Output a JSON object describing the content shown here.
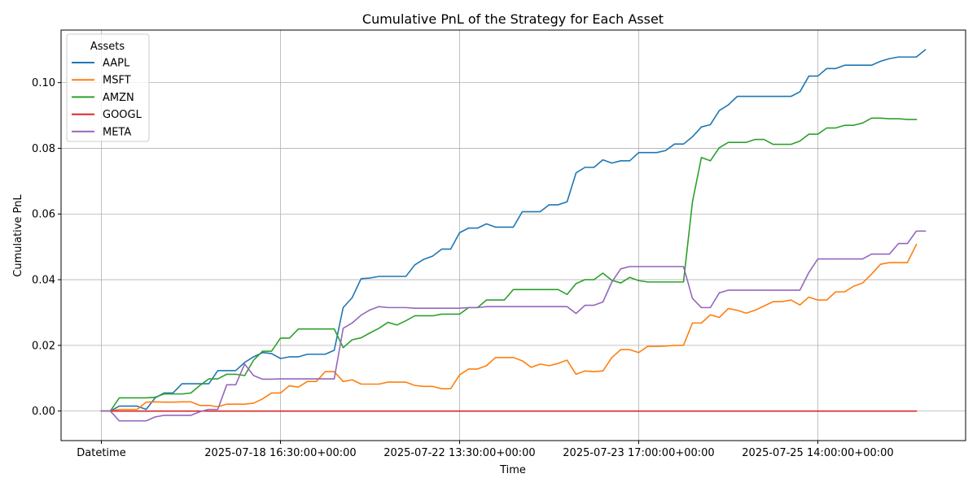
{
  "chart_data": {
    "type": "line",
    "title": "Cumulative PnL of the Strategy for Each Asset",
    "xlabel": "Time",
    "ylabel": "Cumulative PnL",
    "x_tick_labels": [
      "Datetime",
      "2025-07-18 16:30:00+00:00",
      "2025-07-22 13:30:00+00:00",
      "2025-07-23 17:00:00+00:00",
      "2025-07-25 14:00:00+00:00"
    ],
    "x_ticks_at_index": [
      0,
      20,
      40,
      60,
      80
    ],
    "xlim": [
      -4.5,
      96.5
    ],
    "ylim": [
      -0.009,
      0.116
    ],
    "y_ticks": [
      0.0,
      0.02,
      0.04,
      0.06,
      0.08,
      0.1
    ],
    "y_tick_labels": [
      "0.00",
      "0.02",
      "0.04",
      "0.06",
      "0.08",
      "0.10"
    ],
    "grid": true,
    "legend": {
      "title": "Assets",
      "placement": "top-left"
    },
    "series": [
      {
        "name": "AAPL",
        "color": "#1f77b4",
        "values": [
          0,
          0,
          0.0015,
          0.0015,
          0.0015,
          0.0005,
          0.004,
          0.0055,
          0.0055,
          0.0083,
          0.0083,
          0.0083,
          0.0083,
          0.0123,
          0.0123,
          0.0123,
          0.0148,
          0.0165,
          0.0178,
          0.0175,
          0.016,
          0.0165,
          0.0165,
          0.0173,
          0.0173,
          0.0173,
          0.0185,
          0.0315,
          0.0345,
          0.0403,
          0.0405,
          0.041,
          0.041,
          0.041,
          0.041,
          0.0445,
          0.0462,
          0.0472,
          0.0493,
          0.0493,
          0.0543,
          0.0557,
          0.0557,
          0.057,
          0.056,
          0.056,
          0.056,
          0.0607,
          0.0607,
          0.0607,
          0.0628,
          0.0628,
          0.0637,
          0.0725,
          0.0742,
          0.0742,
          0.0765,
          0.0755,
          0.0762,
          0.0762,
          0.0787,
          0.0787,
          0.0787,
          0.0793,
          0.0813,
          0.0813,
          0.0835,
          0.0865,
          0.0872,
          0.0915,
          0.0932,
          0.0958,
          0.0958,
          0.0958,
          0.0958,
          0.0958,
          0.0958,
          0.0958,
          0.0972,
          0.102,
          0.102,
          0.1043,
          0.1043,
          0.1053,
          0.1053,
          0.1053,
          0.1053,
          0.1065,
          0.1073,
          0.1078,
          0.1078,
          0.1078,
          0.11
        ]
      },
      {
        "name": "MSFT",
        "color": "#ff7f0e",
        "values": [
          0,
          0,
          0.0005,
          0.0005,
          0.0005,
          0.0027,
          0.0028,
          0.0027,
          0.0027,
          0.0028,
          0.0028,
          0.0017,
          0.0017,
          0.0013,
          0.0021,
          0.0021,
          0.0021,
          0.0024,
          0.0037,
          0.0055,
          0.0055,
          0.0077,
          0.0073,
          0.009,
          0.009,
          0.012,
          0.012,
          0.009,
          0.0095,
          0.0082,
          0.0082,
          0.0082,
          0.0088,
          0.0088,
          0.0088,
          0.0078,
          0.0075,
          0.0075,
          0.0068,
          0.0068,
          0.011,
          0.0128,
          0.0128,
          0.0138,
          0.0163,
          0.0163,
          0.0163,
          0.0153,
          0.0133,
          0.0143,
          0.0138,
          0.0145,
          0.0155,
          0.0112,
          0.0122,
          0.012,
          0.0122,
          0.0163,
          0.0187,
          0.0187,
          0.0178,
          0.0197,
          0.0197,
          0.0198,
          0.02,
          0.02,
          0.0268,
          0.0268,
          0.0293,
          0.0285,
          0.0312,
          0.0307,
          0.0298,
          0.0307,
          0.032,
          0.0333,
          0.0333,
          0.0338,
          0.0323,
          0.0347,
          0.0338,
          0.0338,
          0.0363,
          0.0363,
          0.038,
          0.039,
          0.0417,
          0.0447,
          0.0452,
          0.0452,
          0.0452,
          0.0507
        ]
      },
      {
        "name": "AMZN",
        "color": "#2ca02c",
        "values": [
          0,
          0,
          0.004,
          0.004,
          0.004,
          0.004,
          0.0042,
          0.0052,
          0.0052,
          0.0052,
          0.0055,
          0.0078,
          0.0098,
          0.0098,
          0.0112,
          0.0112,
          0.0108,
          0.0155,
          0.0182,
          0.0182,
          0.0222,
          0.0222,
          0.025,
          0.025,
          0.025,
          0.025,
          0.025,
          0.0193,
          0.0217,
          0.0223,
          0.0238,
          0.0252,
          0.027,
          0.0262,
          0.0275,
          0.029,
          0.029,
          0.029,
          0.0295,
          0.0295,
          0.0295,
          0.0315,
          0.0315,
          0.0338,
          0.0338,
          0.0338,
          0.037,
          0.037,
          0.037,
          0.037,
          0.037,
          0.037,
          0.0355,
          0.0388,
          0.04,
          0.04,
          0.042,
          0.0398,
          0.039,
          0.0407,
          0.0397,
          0.0393,
          0.0393,
          0.0393,
          0.0393,
          0.0393,
          0.0637,
          0.0772,
          0.0762,
          0.0802,
          0.0818,
          0.0818,
          0.0818,
          0.0827,
          0.0827,
          0.0812,
          0.0812,
          0.0812,
          0.0822,
          0.0843,
          0.0843,
          0.0862,
          0.0862,
          0.087,
          0.087,
          0.0877,
          0.0892,
          0.0892,
          0.089,
          0.089,
          0.0888,
          0.0888
        ]
      },
      {
        "name": "GOOGL",
        "color": "#d62728",
        "values": [
          0,
          0,
          0,
          0,
          0,
          0,
          0,
          0,
          0,
          0,
          0,
          0,
          0,
          0,
          0,
          0,
          0,
          0,
          0,
          0,
          0,
          0,
          0,
          0,
          0,
          0,
          0,
          0,
          0,
          0,
          0,
          0,
          0,
          0,
          0,
          0,
          0,
          0,
          0,
          0,
          0,
          0,
          0,
          0,
          0,
          0,
          0,
          0,
          0,
          0,
          0,
          0,
          0,
          0,
          0,
          0,
          0,
          0,
          0,
          0,
          0,
          0,
          0,
          0,
          0,
          0,
          0,
          0,
          0,
          0,
          0,
          0,
          0,
          0,
          0,
          0,
          0,
          0,
          0,
          0,
          0,
          0,
          0,
          0,
          0,
          0,
          0,
          0,
          0,
          0,
          0,
          0
        ]
      },
      {
        "name": "META",
        "color": "#9467bd",
        "values": [
          0,
          0,
          -0.003,
          -0.003,
          -0.003,
          -0.003,
          -0.0018,
          -0.0013,
          -0.0013,
          -0.0013,
          -0.0013,
          -0.0002,
          0.0005,
          0.0005,
          0.008,
          0.008,
          0.0143,
          0.0108,
          0.0097,
          0.0097,
          0.0098,
          0.0098,
          0.0098,
          0.0098,
          0.0098,
          0.0098,
          0.0098,
          0.0252,
          0.0268,
          0.0292,
          0.0308,
          0.0318,
          0.0315,
          0.0315,
          0.0315,
          0.0313,
          0.0313,
          0.0313,
          0.0313,
          0.0313,
          0.0313,
          0.0315,
          0.0315,
          0.0318,
          0.0318,
          0.0318,
          0.0318,
          0.0318,
          0.0318,
          0.0318,
          0.0318,
          0.0318,
          0.0318,
          0.0297,
          0.0322,
          0.0322,
          0.0332,
          0.0393,
          0.0433,
          0.044,
          0.044,
          0.044,
          0.044,
          0.044,
          0.044,
          0.044,
          0.0343,
          0.0315,
          0.0315,
          0.036,
          0.0368,
          0.0368,
          0.0368,
          0.0368,
          0.0368,
          0.0368,
          0.0368,
          0.0368,
          0.0368,
          0.0422,
          0.0463,
          0.0463,
          0.0463,
          0.0463,
          0.0463,
          0.0463,
          0.0478,
          0.0478,
          0.0478,
          0.051,
          0.051,
          0.0548,
          0.0548
        ]
      }
    ]
  }
}
